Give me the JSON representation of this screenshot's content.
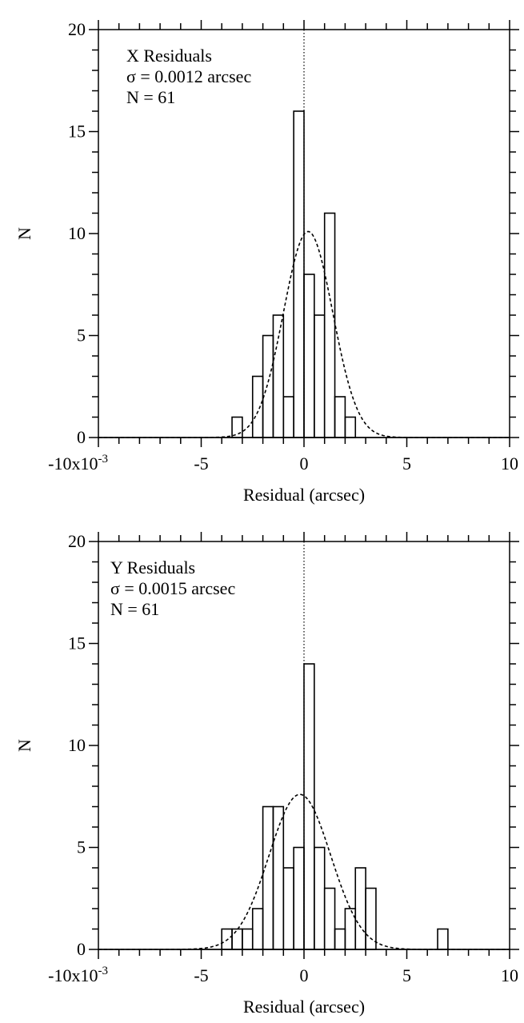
{
  "chart_data": [
    {
      "type": "histogram",
      "annotations": [
        "X Residuals",
        "σ = 0.0012 arcsec",
        "N = 61"
      ],
      "xlabel": "Residual (arcsec)",
      "ylabel": "N",
      "xlim": [
        -0.01,
        0.01
      ],
      "ylim": [
        0,
        20
      ],
      "x_ticks": [
        -0.01,
        -0.005,
        0,
        0.005,
        0.01
      ],
      "x_tick_labels": [
        "-10x10-3",
        "-5",
        "0",
        "5",
        "10"
      ],
      "y_ticks": [
        0,
        5,
        10,
        15,
        20
      ],
      "y_tick_labels": [
        "0",
        "5",
        "10",
        "15",
        "20"
      ],
      "bin_width": 0.0005,
      "bins": [
        {
          "x0": -0.0035,
          "count": 1
        },
        {
          "x0": -0.003,
          "count": 0
        },
        {
          "x0": -0.0025,
          "count": 3
        },
        {
          "x0": -0.002,
          "count": 5
        },
        {
          "x0": -0.0015,
          "count": 6
        },
        {
          "x0": -0.001,
          "count": 2
        },
        {
          "x0": -0.0005,
          "count": 16
        },
        {
          "x0": 0.0,
          "count": 8
        },
        {
          "x0": 0.0005,
          "count": 6
        },
        {
          "x0": 0.001,
          "count": 11
        },
        {
          "x0": 0.0015,
          "count": 2
        },
        {
          "x0": 0.002,
          "count": 1
        }
      ],
      "fit": {
        "type": "gaussian",
        "mean": 0.0002,
        "sigma": 0.0012,
        "peak": 10.1
      },
      "zero_line": true
    },
    {
      "type": "histogram",
      "annotations": [
        "Y Residuals",
        "σ = 0.0015 arcsec",
        "N = 61"
      ],
      "xlabel": "Residual (arcsec)",
      "ylabel": "N",
      "xlim": [
        -0.01,
        0.01
      ],
      "ylim": [
        0,
        20
      ],
      "x_ticks": [
        -0.01,
        -0.005,
        0,
        0.005,
        0.01
      ],
      "x_tick_labels": [
        "-10x10-3",
        "-5",
        "0",
        "5",
        "10"
      ],
      "y_ticks": [
        0,
        5,
        10,
        15,
        20
      ],
      "y_tick_labels": [
        "0",
        "5",
        "10",
        "15",
        "20"
      ],
      "bin_width": 0.0005,
      "bins": [
        {
          "x0": -0.004,
          "count": 1
        },
        {
          "x0": -0.0035,
          "count": 1
        },
        {
          "x0": -0.003,
          "count": 1
        },
        {
          "x0": -0.0025,
          "count": 2
        },
        {
          "x0": -0.002,
          "count": 7
        },
        {
          "x0": -0.0015,
          "count": 7
        },
        {
          "x0": -0.001,
          "count": 4
        },
        {
          "x0": -0.0005,
          "count": 5
        },
        {
          "x0": 0.0,
          "count": 14
        },
        {
          "x0": 0.0005,
          "count": 5
        },
        {
          "x0": 0.001,
          "count": 3
        },
        {
          "x0": 0.0015,
          "count": 1
        },
        {
          "x0": 0.002,
          "count": 2
        },
        {
          "x0": 0.0025,
          "count": 4
        },
        {
          "x0": 0.003,
          "count": 3
        },
        {
          "x0": 0.0035,
          "count": 0
        },
        {
          "x0": 0.004,
          "count": 0
        },
        {
          "x0": 0.0045,
          "count": 0
        },
        {
          "x0": 0.005,
          "count": 0
        },
        {
          "x0": 0.0055,
          "count": 0
        },
        {
          "x0": 0.006,
          "count": 0
        },
        {
          "x0": 0.0065,
          "count": 1
        }
      ],
      "fit": {
        "type": "gaussian",
        "mean": -0.0002,
        "sigma": 0.0015,
        "peak": 7.6
      },
      "zero_line": true
    }
  ]
}
